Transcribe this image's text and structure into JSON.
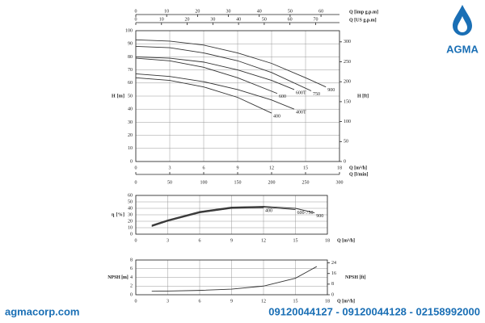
{
  "logo": {
    "text": "AGMA"
  },
  "footer": {
    "website": "agmacorp.com",
    "phones": "09120044127 - 09120044128 - 02158992000"
  },
  "chart_data": [
    {
      "type": "line",
      "ylabel": "H [m]",
      "ylim": [
        0,
        100
      ],
      "yticks": [
        0,
        10,
        20,
        30,
        40,
        50,
        60,
        70,
        80,
        90,
        100
      ],
      "y2label": "H [ft]",
      "y2lim": [
        0,
        328
      ],
      "y2ticks": [
        0,
        50,
        100,
        150,
        200,
        250,
        300
      ],
      "xlabel": "Q [m³/h]",
      "xlim": [
        0,
        18
      ],
      "xticks": [
        0,
        3,
        6,
        9,
        12,
        15,
        18
      ],
      "x2label": "Q [l/min]",
      "x2lim": [
        0,
        300
      ],
      "x2ticks": [
        0,
        50,
        100,
        150,
        200,
        250,
        300
      ],
      "x3label": "Q [imp g.p.m]",
      "x3lim": [
        0,
        66
      ],
      "x3ticks": [
        0,
        10,
        20,
        30,
        40,
        50,
        60
      ],
      "x4label": "Q [US g.p.m]",
      "x4lim": [
        0,
        79.3
      ],
      "x4ticks": [
        0,
        10,
        20,
        30,
        40,
        50,
        60,
        70
      ],
      "grid": true,
      "series": [
        {
          "name": "900",
          "color": "#333333",
          "x": [
            0,
            3,
            6,
            9,
            12,
            15,
            16.8
          ],
          "values": [
            93,
            92,
            89,
            83,
            75,
            64,
            57
          ]
        },
        {
          "name": "750",
          "color": "#333333",
          "x": [
            0,
            3,
            6,
            9,
            12,
            15.5
          ],
          "values": [
            88,
            87,
            83,
            77,
            68,
            54
          ]
        },
        {
          "name": "600T",
          "color": "#333333",
          "x": [
            0,
            3,
            6,
            9,
            12,
            14
          ],
          "values": [
            80,
            79,
            76,
            70,
            62,
            55
          ]
        },
        {
          "name": "600",
          "color": "#333333",
          "x": [
            0,
            3,
            6,
            9,
            12.5
          ],
          "values": [
            79,
            77,
            72,
            64,
            52
          ]
        },
        {
          "name": "400T",
          "color": "#333333",
          "x": [
            0,
            3,
            6,
            9,
            12,
            14
          ],
          "values": [
            67,
            65,
            61,
            55,
            47,
            40
          ]
        },
        {
          "name": "400",
          "color": "#333333",
          "x": [
            0,
            3,
            6,
            9,
            12
          ],
          "values": [
            64,
            62,
            57,
            49,
            37
          ]
        }
      ]
    },
    {
      "type": "line",
      "ylabel": "η [%]",
      "ylim": [
        0,
        60
      ],
      "yticks": [
        0,
        10,
        20,
        30,
        40,
        50,
        60
      ],
      "xlabel": "Q [m³/h]",
      "xlim": [
        0,
        18
      ],
      "xticks": [
        0,
        3,
        6,
        9,
        12,
        15,
        18
      ],
      "grid": true,
      "series": [
        {
          "name": "400",
          "color": "#333333",
          "x": [
            1.5,
            3,
            6,
            9,
            12
          ],
          "values": [
            12,
            20,
            33,
            40,
            41
          ]
        },
        {
          "name": "600-750",
          "color": "#333333",
          "x": [
            1.5,
            3,
            6,
            9,
            12,
            15
          ],
          "values": [
            13,
            21,
            34,
            41,
            42,
            38
          ]
        },
        {
          "name": "900",
          "color": "#333333",
          "x": [
            1.5,
            3,
            6,
            9,
            12,
            15,
            16.8
          ],
          "values": [
            14,
            22,
            35,
            42,
            43,
            40,
            33
          ]
        }
      ]
    },
    {
      "type": "line",
      "ylabel": "NPSH [m]",
      "ylim": [
        0,
        8
      ],
      "yticks": [
        0,
        2,
        4,
        6,
        8
      ],
      "y2label": "NPSH [ft]",
      "y2lim": [
        0,
        26.2
      ],
      "y2ticks": [
        0,
        8,
        16,
        24
      ],
      "xlabel": "Q [m³/h]",
      "xlim": [
        0,
        18
      ],
      "xticks": [
        0,
        3,
        6,
        9,
        12,
        15,
        18
      ],
      "grid": true,
      "series": [
        {
          "color": "#333333",
          "x": [
            1.5,
            3,
            6,
            9,
            12,
            15,
            17
          ],
          "values": [
            0.8,
            0.85,
            1,
            1.3,
            2,
            3.8,
            6.5
          ]
        }
      ]
    }
  ]
}
